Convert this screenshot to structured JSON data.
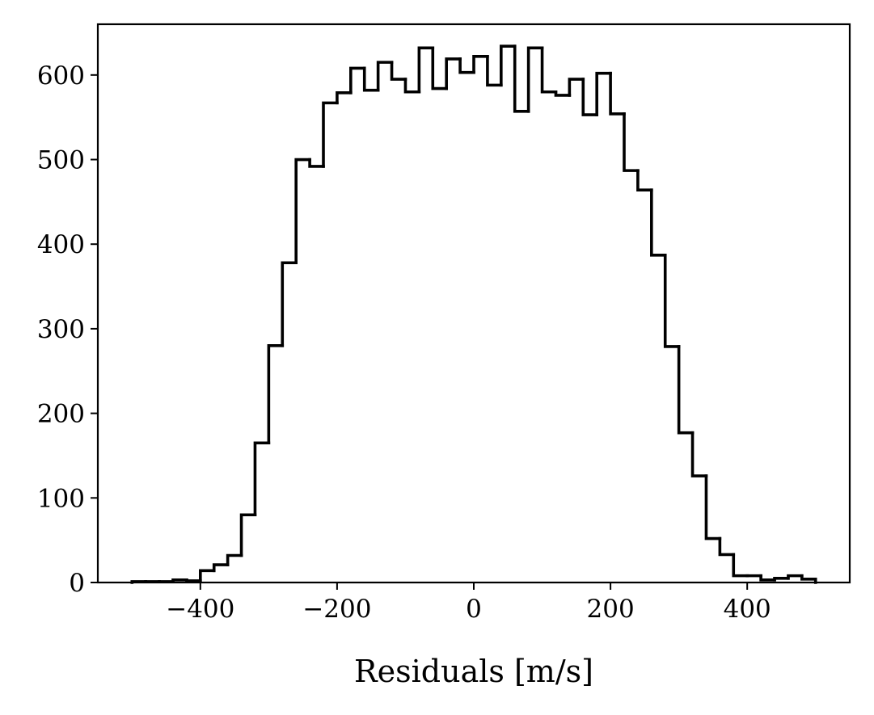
{
  "chart_data": {
    "type": "histogram",
    "title": "",
    "xlabel": "Residuals [m/s]",
    "ylabel": "",
    "xlim": [
      -550,
      550
    ],
    "ylim": [
      0,
      660
    ],
    "grid": false,
    "x_ticks": [
      -400,
      -200,
      0,
      200,
      400
    ],
    "x_tick_labels": [
      "−400",
      "−200",
      "0",
      "200",
      "400"
    ],
    "y_ticks": [
      0,
      100,
      200,
      300,
      400,
      500,
      600
    ],
    "y_tick_labels": [
      "0",
      "100",
      "200",
      "300",
      "400",
      "500",
      "600"
    ],
    "bin_edges": [
      -500,
      -480,
      -460,
      -440,
      -420,
      -400,
      -380,
      -360,
      -340,
      -320,
      -300,
      -280,
      -260,
      -240,
      -220,
      -200,
      -180,
      -160,
      -140,
      -120,
      -100,
      -80,
      -60,
      -40,
      -20,
      0,
      20,
      40,
      60,
      80,
      100,
      120,
      140,
      160,
      180,
      200,
      220,
      240,
      260,
      280,
      300,
      320,
      340,
      360,
      380,
      400,
      420,
      440,
      460,
      480,
      500
    ],
    "counts": [
      1,
      1,
      1,
      3,
      2,
      14,
      21,
      32,
      80,
      165,
      280,
      378,
      500,
      492,
      567,
      579,
      608,
      582,
      615,
      595,
      580,
      632,
      584,
      619,
      603,
      622,
      588,
      634,
      557,
      632,
      580,
      576,
      595,
      553,
      602,
      554,
      487,
      464,
      387,
      279,
      177,
      126,
      52,
      33,
      8,
      8,
      3,
      5,
      8,
      4
    ],
    "series_color": "#000000"
  }
}
